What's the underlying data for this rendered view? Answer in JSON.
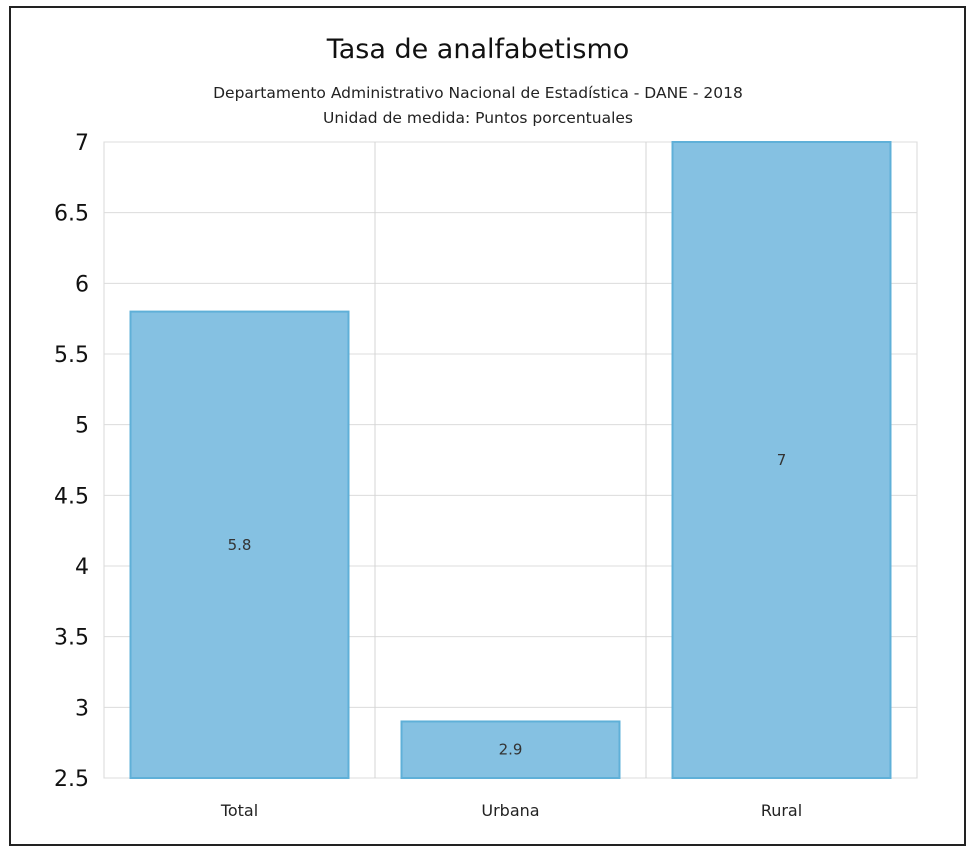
{
  "chart_data": {
    "type": "bar",
    "title": "Tasa de analfabetismo",
    "subtitle": "Departamento Administrativo Nacional de Estadística - DANE - 2018",
    "subtitle2": "Unidad de medida: Puntos porcentuales",
    "xlabel": "",
    "ylabel": "",
    "categories": [
      "Total",
      "Urbana",
      "Rural"
    ],
    "values": [
      5.8,
      2.9,
      7
    ],
    "data_labels": [
      "5.8",
      "2.9",
      "7"
    ],
    "ylim": [
      2.5,
      7
    ],
    "yticks": [
      2.5,
      3,
      3.5,
      4,
      4.5,
      5,
      5.5,
      6,
      6.5,
      7
    ],
    "ytick_labels": [
      "2.5",
      "3",
      "3.5",
      "4",
      "4.5",
      "5",
      "5.5",
      "6",
      "6.5",
      "7"
    ],
    "grid": true,
    "legend": "none",
    "bar_color": "#85c1e2",
    "bar_edge_color": "#5fb0d8"
  }
}
